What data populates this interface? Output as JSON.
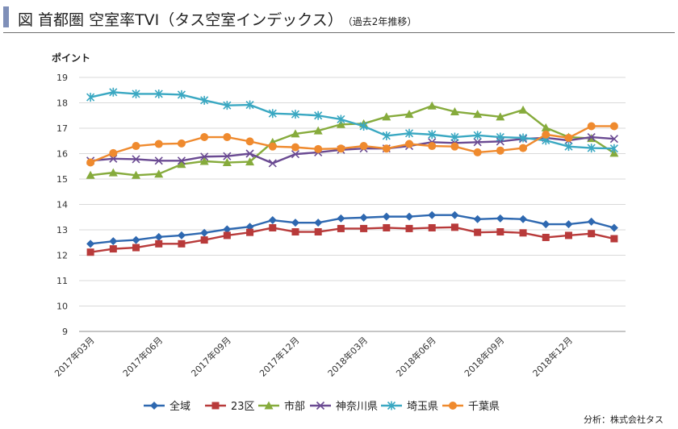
{
  "header": {
    "title": "図 首都圏 空室率TVI（タス空室インデックス）",
    "subtitle": "（過去2年推移）"
  },
  "footer": {
    "source": "分析：株式会社タス"
  },
  "colors": {
    "zeniki": "#2e68b0",
    "ku23": "#b83a3a",
    "shibu": "#86ab3c",
    "kanagawa": "#6a4a92",
    "saitama": "#3aa8c2",
    "chiba": "#ef8a2e",
    "grid": "#d9d9d9",
    "axis": "#8c8c8c"
  },
  "chart_data": {
    "type": "line",
    "title": "",
    "ylabel": "ポイント",
    "xlabel": "",
    "ylim": [
      9,
      19
    ],
    "yticks": [
      9,
      10,
      11,
      12,
      13,
      14,
      15,
      16,
      17,
      18,
      19
    ],
    "grid": true,
    "legend": "bottom",
    "x": [
      "2017年03月",
      "2017年04月",
      "2017年05月",
      "2017年06月",
      "2017年07月",
      "2017年08月",
      "2017年09月",
      "2017年10月",
      "2017年11月",
      "2017年12月",
      "2018年01月",
      "2018年02月",
      "2018年03月",
      "2018年04月",
      "2018年05月",
      "2018年06月",
      "2018年07月",
      "2018年08月",
      "2018年09月",
      "2018年10月",
      "2018年11月",
      "2018年12月",
      "2019年01月",
      "2019年02月"
    ],
    "xtick_labels": [
      "2017年03月",
      "2017年06月",
      "2017年09月",
      "2017年12月",
      "2018年03月",
      "2018年06月",
      "2018年09月",
      "2018年12月"
    ],
    "xtick_indices": [
      0,
      3,
      6,
      9,
      12,
      15,
      18,
      21
    ],
    "series": [
      {
        "name": "全域",
        "key": "zeniki",
        "marker": "diamond",
        "values": [
          12.45,
          12.55,
          12.6,
          12.72,
          12.78,
          12.88,
          13.02,
          13.12,
          13.38,
          13.28,
          13.28,
          13.45,
          13.48,
          13.52,
          13.52,
          13.58,
          13.58,
          13.42,
          13.45,
          13.42,
          13.22,
          13.22,
          13.32,
          13.08
        ]
      },
      {
        "name": "23区",
        "key": "ku23",
        "marker": "square",
        "values": [
          12.12,
          12.25,
          12.3,
          12.45,
          12.45,
          12.6,
          12.78,
          12.9,
          13.08,
          12.92,
          12.92,
          13.05,
          13.05,
          13.08,
          13.05,
          13.08,
          13.1,
          12.9,
          12.92,
          12.88,
          12.7,
          12.78,
          12.85,
          12.65
        ]
      },
      {
        "name": "市部",
        "key": "shibu",
        "marker": "triangle",
        "values": [
          15.15,
          15.25,
          15.15,
          15.2,
          15.58,
          15.7,
          15.65,
          15.68,
          16.45,
          16.78,
          16.9,
          17.15,
          17.18,
          17.45,
          17.55,
          17.88,
          17.65,
          17.55,
          17.45,
          17.72,
          17.02,
          16.65,
          16.6,
          16.02
        ]
      },
      {
        "name": "神奈川県",
        "key": "kanagawa",
        "marker": "x",
        "values": [
          15.72,
          15.8,
          15.78,
          15.72,
          15.72,
          15.88,
          15.9,
          16.0,
          15.62,
          15.98,
          16.05,
          16.15,
          16.2,
          16.2,
          16.3,
          16.45,
          16.42,
          16.45,
          16.48,
          16.58,
          16.62,
          16.52,
          16.65,
          16.58
        ]
      },
      {
        "name": "埼玉県",
        "key": "saitama",
        "marker": "star",
        "values": [
          18.22,
          18.42,
          18.35,
          18.35,
          18.32,
          18.1,
          17.9,
          17.92,
          17.58,
          17.55,
          17.5,
          17.35,
          17.08,
          16.7,
          16.8,
          16.75,
          16.65,
          16.72,
          16.65,
          16.62,
          16.52,
          16.28,
          16.22,
          16.2
        ]
      },
      {
        "name": "千葉県",
        "key": "chiba",
        "marker": "circle",
        "values": [
          15.65,
          16.02,
          16.3,
          16.38,
          16.4,
          16.65,
          16.65,
          16.48,
          16.28,
          16.25,
          16.18,
          16.2,
          16.3,
          16.2,
          16.38,
          16.3,
          16.28,
          16.05,
          16.12,
          16.22,
          16.75,
          16.62,
          17.08,
          17.08
        ]
      }
    ]
  }
}
